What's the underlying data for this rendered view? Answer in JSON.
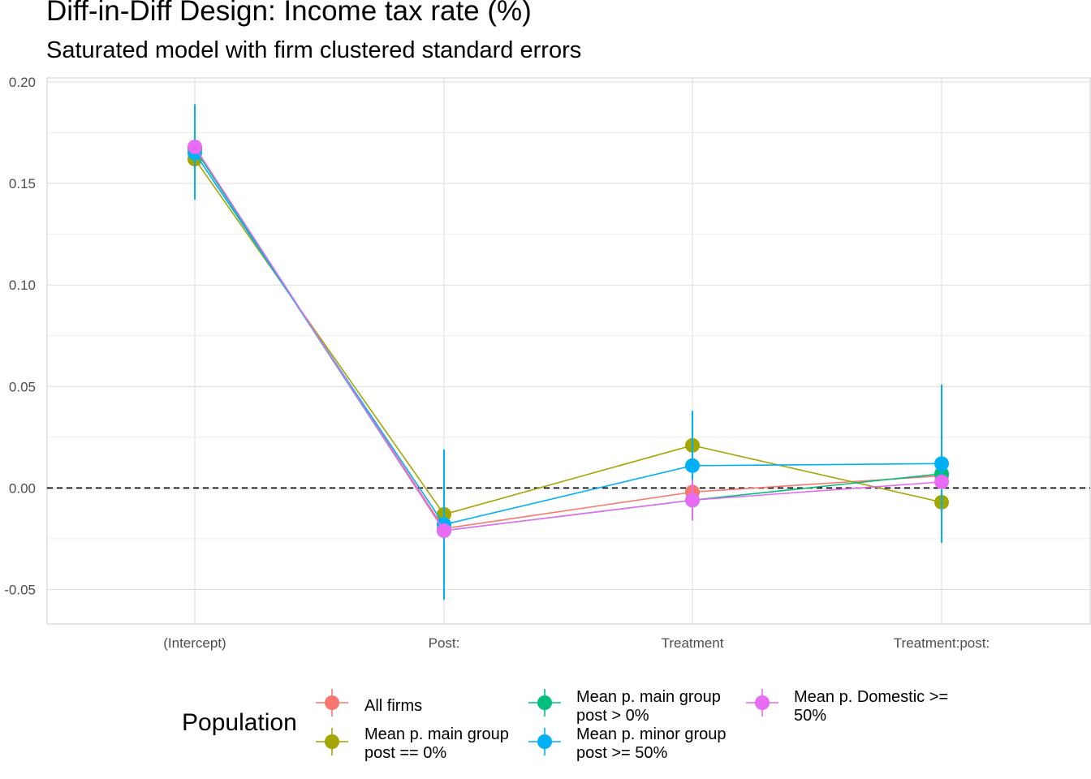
{
  "chart_data": {
    "type": "scatter",
    "title": "Diff-in-Diff Design: Income tax rate  (%)",
    "subtitle": "Saturated model with firm clustered standard errors",
    "xlabel": "",
    "ylabel": "",
    "categories": [
      "(Intercept)",
      "Post:",
      "Treatment",
      "Treatment:post:"
    ],
    "ylim": [
      -0.067,
      0.202
    ],
    "yticks": [
      -0.05,
      0.0,
      0.05,
      0.1,
      0.15,
      0.2
    ],
    "ytick_labels": [
      "-0.05",
      "0.00",
      "0.05",
      "0.10",
      "0.15",
      "0.20"
    ],
    "reference_line": 0,
    "grid": true,
    "connect_points": true,
    "legend": {
      "title": "Population",
      "position": "bottom"
    },
    "series": [
      {
        "name": "All firms",
        "color": "#F8766D",
        "values": [
          0.167,
          -0.02,
          -0.002,
          0.006
        ],
        "ci_low": [
          0.167,
          -0.02,
          -0.002,
          0.006
        ],
        "ci_high": [
          0.167,
          -0.02,
          -0.002,
          0.006
        ]
      },
      {
        "name": "Mean p. main group\npost == 0%",
        "color": "#A3A500",
        "values": [
          0.162,
          -0.013,
          0.021,
          -0.007
        ],
        "ci_low": [
          0.162,
          -0.013,
          0.021,
          -0.007
        ],
        "ci_high": [
          0.162,
          -0.013,
          0.021,
          -0.007
        ]
      },
      {
        "name": "Mean p. main group\npost > 0%",
        "color": "#00BF7D",
        "values": [
          0.167,
          -0.021,
          -0.006,
          0.007
        ],
        "ci_low": [
          0.167,
          -0.021,
          -0.006,
          0.007
        ],
        "ci_high": [
          0.167,
          -0.021,
          -0.006,
          0.007
        ]
      },
      {
        "name": "Mean p. minor group\npost >= 50%",
        "color": "#00B0F6",
        "values": [
          0.165,
          -0.018,
          0.011,
          0.012
        ],
        "ci_low": [
          0.142,
          -0.055,
          -0.016,
          -0.027
        ],
        "ci_high": [
          0.189,
          0.019,
          0.038,
          0.051
        ]
      },
      {
        "name": "Mean p. Domestic >=\n50%",
        "color": "#E76BF3",
        "values": [
          0.168,
          -0.021,
          -0.006,
          0.003
        ],
        "ci_low": [
          0.168,
          -0.021,
          -0.016,
          0.003
        ],
        "ci_high": [
          0.168,
          -0.021,
          0.004,
          0.003
        ]
      }
    ]
  }
}
